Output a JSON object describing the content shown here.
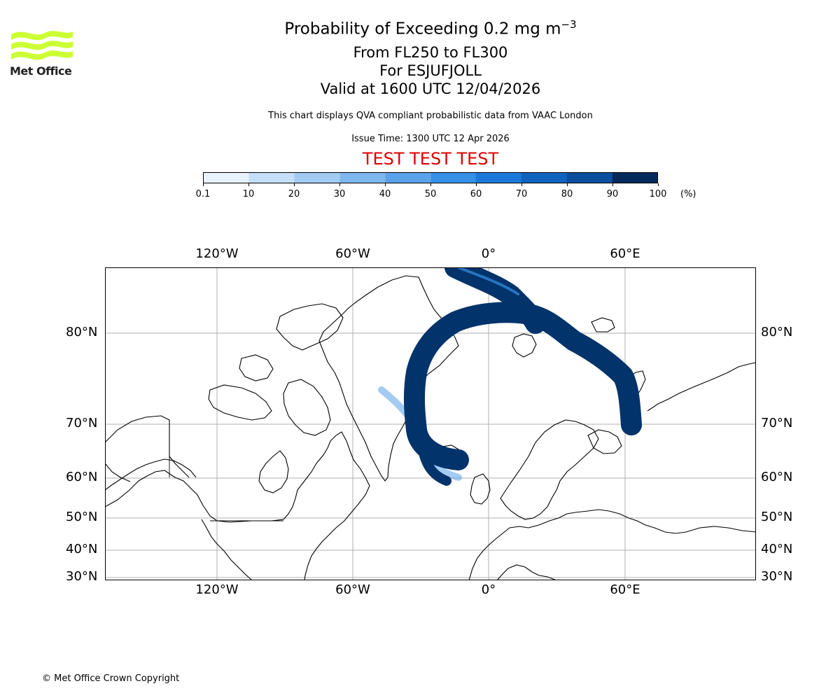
{
  "logo": {
    "text": "Met Office",
    "color": "#ccff33"
  },
  "title": {
    "line1": "Probability of Exceeding 0.2 mg m",
    "line1_sup": "−3",
    "line2": "From FL250 to FL300",
    "line3": "For ESJUFJOLL",
    "line4": "Valid at 1600 UTC 12/04/2026"
  },
  "note": "This chart displays QVA compliant probabilistic data from VAAC London",
  "issue_time": "Issue Time: 1300 UTC 12 Apr 2026",
  "test_banner": "TEST TEST TEST",
  "colorbar": {
    "ticks": [
      "0.1",
      "10",
      "20",
      "30",
      "40",
      "50",
      "60",
      "70",
      "80",
      "90",
      "100"
    ],
    "unit": "(%)",
    "colors": [
      "#e8f2fc",
      "#c4dff7",
      "#a2cbf3",
      "#7eb7ee",
      "#5aa3ea",
      "#3690e5",
      "#1b7ad9",
      "#0f63bf",
      "#0a4f9e",
      "#063b7a",
      "#022a5a"
    ]
  },
  "map": {
    "lon_labels": [
      "120°W",
      "60°W",
      "0°",
      "60°E"
    ],
    "lat_labels": [
      "80°N",
      "70°N",
      "60°N",
      "50°N",
      "40°N",
      "30°N"
    ],
    "grid_color": "#b0b0b0",
    "plume_color": "#02336a"
  },
  "copyright": "© Met Office Crown Copyright"
}
